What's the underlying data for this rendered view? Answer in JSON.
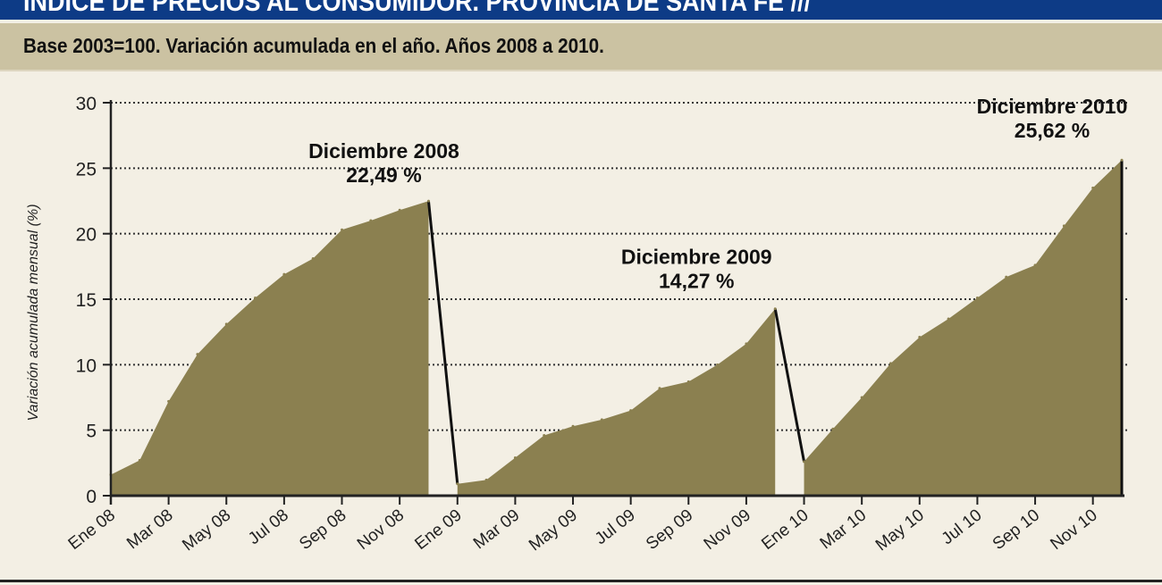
{
  "header": {
    "title": "INDICE DE PRECIOS AL CONSUMIDOR. PROVINCIA DE SANTA FE ///",
    "subtitle": "Base 2003=100. Variación acumulada en el año. Años 2008 a 2010."
  },
  "colors": {
    "title_bar": "#0d3b86",
    "subtitle_band": "#cbc2a2",
    "area_fill": "#8b8050",
    "background": "#f3efe4"
  },
  "chart_data": {
    "type": "area",
    "ylabel": "Variación acumulada mensual (%)",
    "xlabel": "",
    "ylim": [
      0,
      30
    ],
    "yticks": [
      0,
      5,
      10,
      15,
      20,
      25,
      30
    ],
    "grid": true,
    "x": [
      "Ene 08",
      "Feb 08",
      "Mar 08",
      "Abr 08",
      "May 08",
      "Jun 08",
      "Jul 08",
      "Ago 08",
      "Sep 08",
      "Oct 08",
      "Nov 08",
      "Dic 08",
      "Ene 09",
      "Feb 09",
      "Mar 09",
      "Abr 09",
      "May 09",
      "Jun 09",
      "Jul 09",
      "Ago 09",
      "Sep 09",
      "Oct 09",
      "Nov 09",
      "Dic 09",
      "Ene 10",
      "Feb 10",
      "Mar 10",
      "Abr 10",
      "May 10",
      "Jun 10",
      "Jul 10",
      "Ago 10",
      "Sep 10",
      "Oct 10",
      "Nov 10",
      "Dic 10"
    ],
    "xtick_labels": [
      "Ene 08",
      "Mar 08",
      "May 08",
      "Jul 08",
      "Sep 08",
      "Nov 08",
      "Ene 09",
      "Mar 09",
      "May 09",
      "Jul 09",
      "Sep 09",
      "Nov 09",
      "Ene 10",
      "Mar 10",
      "May 10",
      "Jul 10",
      "Sep 10",
      "Nov 10"
    ],
    "values": [
      1.6,
      2.7,
      7.2,
      10.8,
      13.1,
      15.1,
      16.9,
      18.1,
      20.3,
      21.0,
      21.8,
      22.49,
      0.9,
      1.2,
      2.9,
      4.6,
      5.3,
      5.8,
      6.5,
      8.2,
      8.7,
      10.0,
      11.6,
      14.27,
      2.6,
      5.1,
      7.5,
      10.1,
      12.1,
      13.5,
      15.1,
      16.7,
      17.6,
      20.6,
      23.5,
      25.62
    ],
    "annotations": [
      {
        "index": 11,
        "label": "Diciembre 2008",
        "value": "22,49 %"
      },
      {
        "index": 23,
        "label": "Diciembre 2009",
        "value": "14,27 %"
      },
      {
        "index": 35,
        "label": "Diciembre 2010",
        "value": "25,62 %"
      }
    ]
  }
}
